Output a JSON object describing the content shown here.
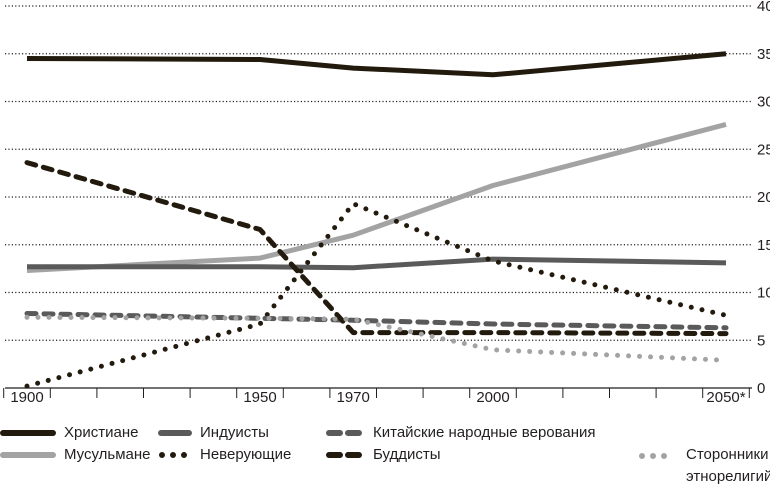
{
  "chart_data": {
    "type": "line",
    "title": "",
    "xlabel": "",
    "ylabel": "",
    "x": [
      1900,
      1950,
      1970,
      2000,
      2050
    ],
    "x_tick_labels": [
      "1900",
      "1950",
      "1970",
      "2000",
      "2050*"
    ],
    "y_ticks": [
      0,
      5,
      10,
      15,
      20,
      25,
      30,
      35,
      40
    ],
    "ylim": [
      0,
      40
    ],
    "y_axis_position": "right",
    "grid": "horizontal dotted",
    "legend_position": "bottom",
    "series": [
      {
        "name": "Христиане",
        "values": [
          34.5,
          34.4,
          33.5,
          32.8,
          35.0
        ],
        "color": "#231a0e",
        "style": "solid"
      },
      {
        "name": "Мусульмане",
        "values": [
          12.3,
          13.6,
          16.0,
          21.2,
          27.6
        ],
        "color": "#a3a3a3",
        "style": "solid"
      },
      {
        "name": "Индуисты",
        "values": [
          12.7,
          12.7,
          12.6,
          13.5,
          13.1
        ],
        "color": "#5a5a5a",
        "style": "solid"
      },
      {
        "name": "Неверующие",
        "values": [
          0.2,
          6.7,
          19.3,
          13.3,
          7.6
        ],
        "color": "#231a0e",
        "style": "dotted"
      },
      {
        "name": "Китайские народные верования",
        "values": [
          7.8,
          7.3,
          7.1,
          6.7,
          6.3
        ],
        "color": "#5a5a5a",
        "style": "dashed"
      },
      {
        "name": "Буддисты",
        "values": [
          23.6,
          16.6,
          5.8,
          5.8,
          5.7
        ],
        "color": "#231a0e",
        "style": "dashed"
      },
      {
        "name": "Сторонники этнорелигий",
        "values": [
          7.4,
          7.3,
          7.2,
          4.0,
          2.9
        ],
        "color": "#a3a3a3",
        "style": "dotted"
      }
    ]
  },
  "legend": [
    {
      "label": "Христиане"
    },
    {
      "label": "Мусульмане"
    },
    {
      "label": "Индуисты"
    },
    {
      "label": "Неверующие"
    },
    {
      "label": "Китайские народные верования"
    },
    {
      "label": "Буддисты"
    },
    {
      "label": "Сторонники этнорелигий"
    }
  ]
}
